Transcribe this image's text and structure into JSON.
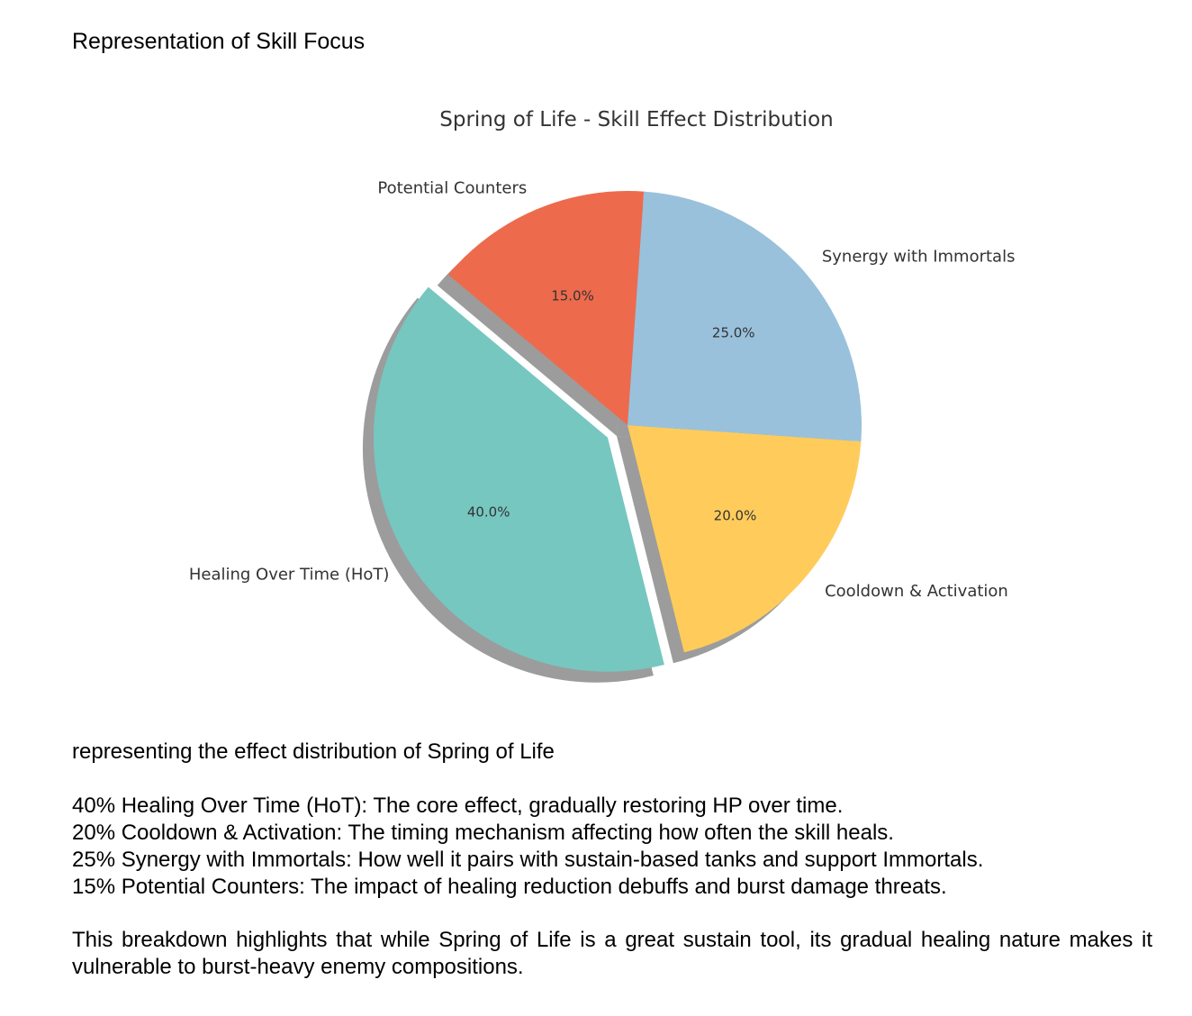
{
  "heading": "Representation of Skill Focus",
  "chart_data": {
    "type": "pie",
    "title": "Spring of Life - Skill Effect Distribution",
    "categories": [
      "Healing Over Time (HoT)",
      "Cooldown & Activation",
      "Synergy with Immortals",
      "Potential Counters"
    ],
    "values": [
      40,
      20,
      25,
      15
    ],
    "value_labels": [
      "40.0%",
      "20.0%",
      "25.0%",
      "15.0%"
    ],
    "colors": [
      "#76c7c0",
      "#ffcc5c",
      "#99c1dc",
      "#ee6a4d"
    ],
    "explode": [
      0.1,
      0,
      0,
      0
    ],
    "start_angle": 140,
    "shadow": true
  },
  "caption": "representing the effect distribution of Spring of Life",
  "items": [
    "40% Healing Over Time (HoT): The core effect, gradually restoring HP over time.",
    "20% Cooldown & Activation: The timing mechanism affecting how often the skill heals.",
    "25% Synergy with Immortals: How well it pairs with sustain-based tanks and support Immortals.",
    "15% Potential Counters: The impact of healing reduction debuffs and burst damage threats."
  ],
  "conclusion": "This breakdown highlights that while Spring of Life is a great sustain tool, its gradual healing nature makes it vulnerable to burst-heavy enemy compositions."
}
